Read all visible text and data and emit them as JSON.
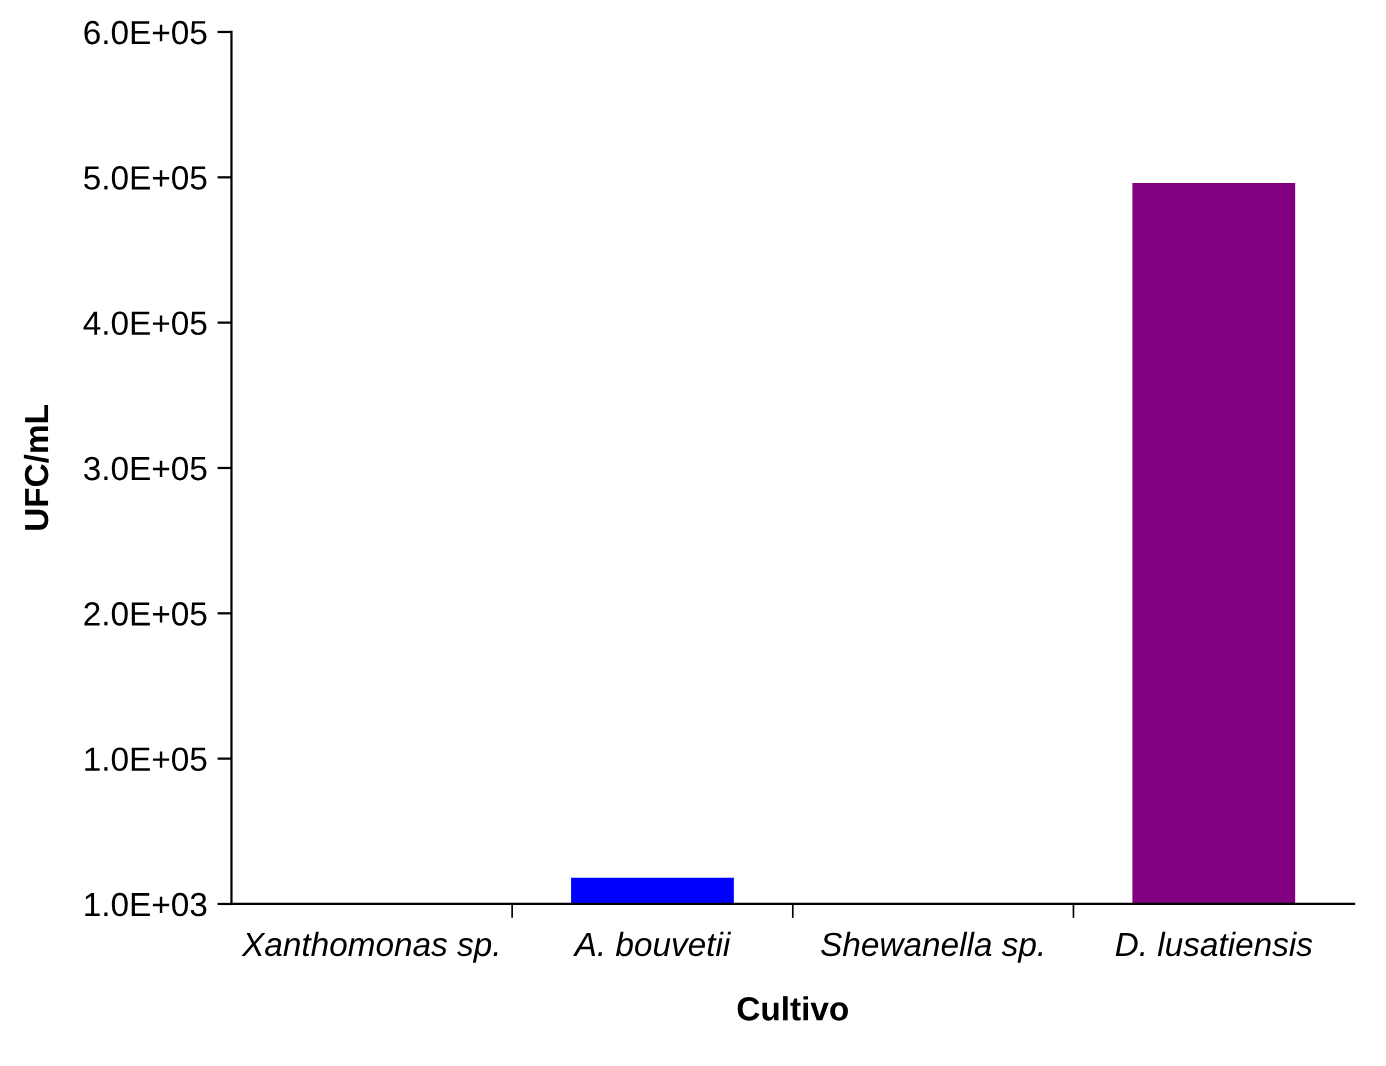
{
  "chart_data": {
    "type": "bar",
    "xlabel": "Cultivo",
    "ylabel": "UFC/mL",
    "categories": [
      "Xanthomonas sp.",
      "A. bouvetii",
      "Shewanella sp.",
      "D. lusatiensis"
    ],
    "values": [
      null,
      19000,
      null,
      497000
    ],
    "colors": [
      "#0000ff",
      "#0000ff",
      "#800080",
      "#800080"
    ],
    "ylim": [
      1000,
      601000
    ],
    "yticks": [
      {
        "value": 1000,
        "label": "1.0E+03"
      },
      {
        "value": 101000,
        "label": "1.0E+05"
      },
      {
        "value": 201000,
        "label": "2.0E+05"
      },
      {
        "value": 301000,
        "label": "3.0E+05"
      },
      {
        "value": 401000,
        "label": "4.0E+05"
      },
      {
        "value": 501000,
        "label": "5.0E+05"
      },
      {
        "value": 601000,
        "label": "6.0E+05"
      }
    ],
    "grid": false,
    "legend": false
  }
}
